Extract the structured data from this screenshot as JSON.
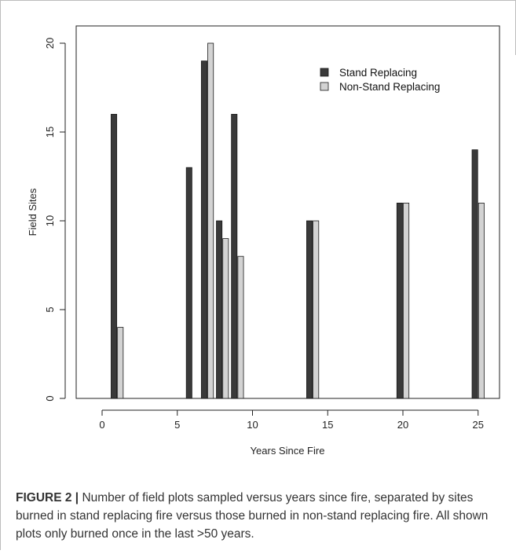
{
  "chart_data": {
    "type": "bar",
    "xlabel": "Years Since Fire",
    "ylabel": "Field Sites",
    "xlim": [
      -1,
      26
    ],
    "ylim": [
      0,
      21
    ],
    "xticks": [
      "0",
      "5",
      "10",
      "15",
      "20",
      "25"
    ],
    "yticks": [
      "0",
      "5",
      "10",
      "15",
      "20"
    ],
    "legend_position": "top-right",
    "series": [
      {
        "name": "Stand Replacing",
        "color": "#3a3a3a",
        "points": [
          {
            "x": 1,
            "y": 16
          },
          {
            "x": 6,
            "y": 13
          },
          {
            "x": 7,
            "y": 19
          },
          {
            "x": 8,
            "y": 10
          },
          {
            "x": 9,
            "y": 16
          },
          {
            "x": 14,
            "y": 10
          },
          {
            "x": 20,
            "y": 11
          },
          {
            "x": 25,
            "y": 14
          }
        ]
      },
      {
        "name": "Non-Stand Replacing",
        "color": "#d3d3d3",
        "points": [
          {
            "x": 1,
            "y": 4
          },
          {
            "x": 7,
            "y": 20
          },
          {
            "x": 8,
            "y": 9
          },
          {
            "x": 9,
            "y": 8
          },
          {
            "x": 14,
            "y": 10
          },
          {
            "x": 20,
            "y": 11
          },
          {
            "x": 25,
            "y": 11
          }
        ]
      }
    ]
  },
  "caption": {
    "label": "FIGURE 2 |",
    "text": " Number of field plots sampled versus years since fire, separated by sites burned in stand replacing fire versus those burned in non-stand replacing fire. All shown plots only burned once in the last >50 years."
  }
}
